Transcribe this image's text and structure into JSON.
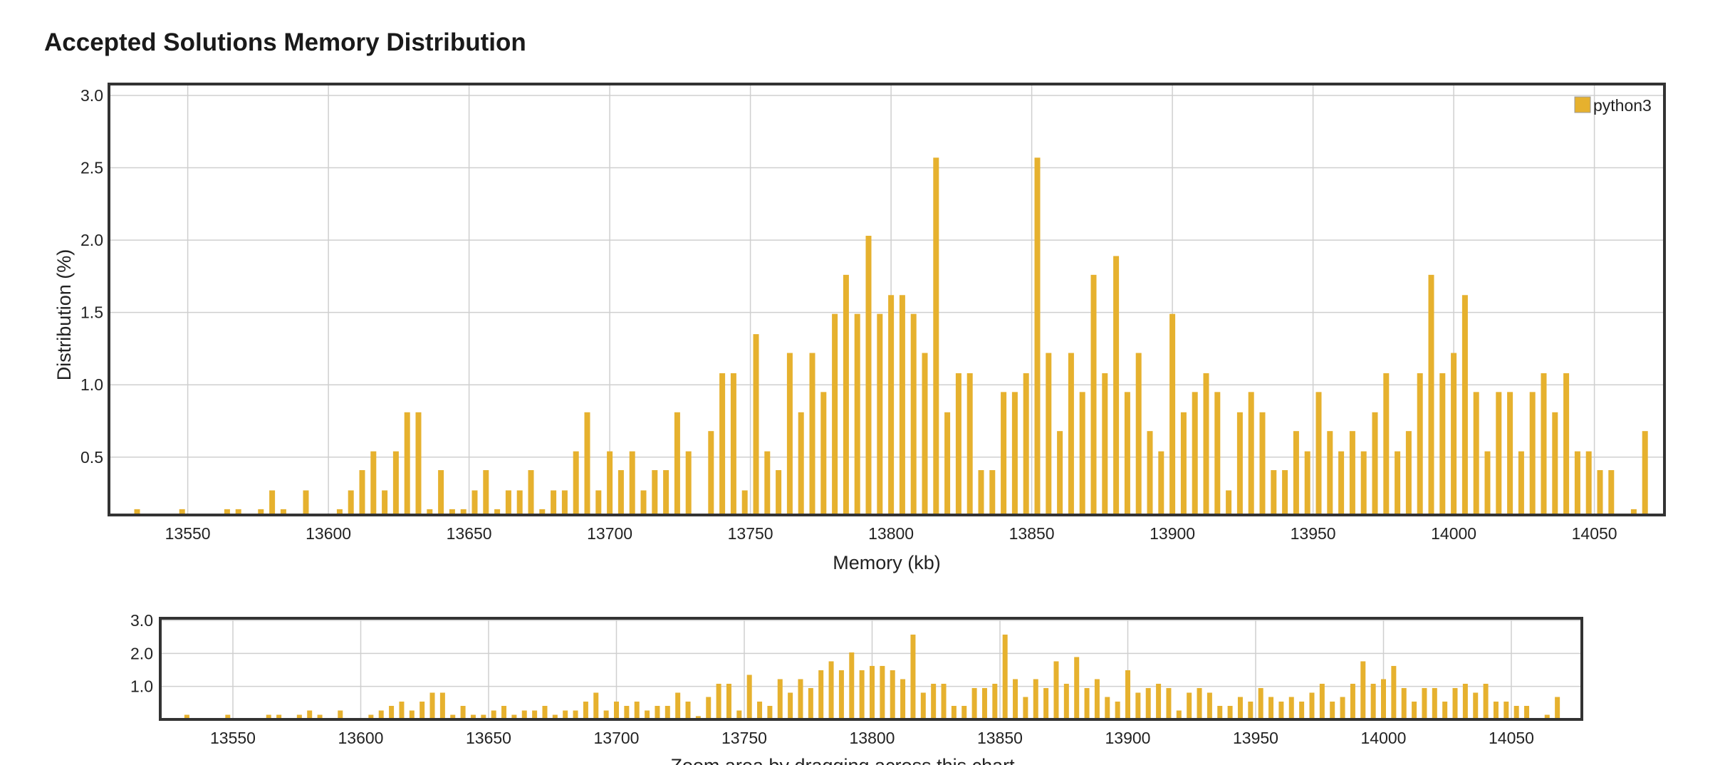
{
  "page": {
    "title": "Accepted Solutions Memory Distribution"
  },
  "colors": {
    "bar": "#e6b12e",
    "frame": "#333333",
    "grid": "#cfcfcf",
    "text": "#222222"
  },
  "chart_data": [
    {
      "id": "main",
      "type": "bar",
      "title": "Accepted Solutions Memory Distribution",
      "xlabel": "Memory (kb)",
      "ylabel": "Distribution (%)",
      "xlim": [
        13521,
        13078.9
      ],
      "ylim": [
        0.1,
        3.05
      ],
      "xticks": [
        13550,
        13600,
        13650,
        13700,
        13750,
        13800,
        13850,
        13900,
        13950,
        14000,
        14050
      ],
      "yticks": [
        0.5,
        1.0,
        1.5,
        2.0,
        2.5,
        3.0
      ],
      "ytick_labels": [
        "0.5",
        "1.0",
        "1.5",
        "2.0",
        "2.5",
        "3.0"
      ],
      "grid": true,
      "legend": {
        "position": "top-right",
        "entries": [
          "python3"
        ]
      },
      "series": [
        {
          "name": "python3",
          "x": [
            13532,
            13548,
            13564,
            13568,
            13576,
            13580,
            13584,
            13592,
            13604,
            13608,
            13612,
            13616,
            13620,
            13624,
            13628,
            13632,
            13636,
            13640,
            13644,
            13648,
            13652,
            13656,
            13660,
            13664,
            13668,
            13672,
            13676,
            13680,
            13684,
            13688,
            13692,
            13696,
            13700,
            13704,
            13708,
            13712,
            13716,
            13720,
            13724,
            13728,
            13732,
            13736,
            13740,
            13744,
            13748,
            13752,
            13756,
            13760,
            13764,
            13768,
            13772,
            13776,
            13780,
            13784,
            13788,
            13792,
            13796,
            13800,
            13804,
            13808,
            13812,
            13816,
            13820,
            13824,
            13828,
            13832,
            13836,
            13840,
            13844,
            13848,
            13852,
            13856,
            13860,
            13864,
            13868,
            13872,
            13876,
            13880,
            13884,
            13888,
            13892,
            13896,
            13900,
            13904,
            13908,
            13912,
            13916,
            13920,
            13924,
            13928,
            13932,
            13936,
            13940,
            13944,
            13948,
            13952,
            13956,
            13960,
            13964,
            13968,
            13972,
            13976,
            13980,
            13984,
            13988,
            13992,
            13996,
            14000,
            14004,
            14008,
            14012,
            14016,
            14020,
            14024,
            14028,
            14032,
            14036,
            14040,
            14044,
            14048,
            14052,
            14056,
            14064,
            14068
          ],
          "values": [
            0.14,
            0.14,
            0.14,
            0.14,
            0.14,
            0.27,
            0.14,
            0.27,
            0.14,
            0.27,
            0.41,
            0.54,
            0.27,
            0.54,
            0.81,
            0.81,
            0.14,
            0.41,
            0.14,
            0.14,
            0.27,
            0.41,
            0.14,
            0.27,
            0.27,
            0.41,
            0.14,
            0.27,
            0.27,
            0.54,
            0.81,
            0.27,
            0.54,
            0.41,
            0.54,
            0.27,
            0.41,
            0.41,
            0.81,
            0.54,
            0.1,
            0.68,
            1.08,
            1.08,
            0.27,
            1.35,
            0.54,
            0.41,
            1.22,
            0.81,
            1.22,
            0.95,
            1.49,
            1.76,
            1.49,
            2.03,
            1.49,
            1.62,
            1.62,
            1.49,
            1.22,
            2.57,
            0.81,
            1.08,
            1.08,
            0.41,
            0.41,
            0.95,
            0.95,
            1.08,
            2.57,
            1.22,
            0.68,
            1.22,
            0.95,
            1.76,
            1.08,
            1.89,
            0.95,
            1.22,
            0.68,
            0.54,
            1.49,
            0.81,
            0.95,
            1.08,
            0.95,
            0.27,
            0.81,
            0.95,
            0.81,
            0.41,
            0.41,
            0.68,
            0.54,
            0.95,
            0.68,
            0.54,
            0.68,
            0.54,
            0.81,
            1.08,
            0.54,
            0.68,
            1.08,
            1.76,
            1.08,
            1.22,
            1.62,
            0.95,
            0.54,
            0.95,
            0.95,
            0.54,
            0.95,
            1.08,
            0.81,
            1.08,
            0.54,
            0.54,
            0.41,
            0.41,
            0.14,
            0.68
          ]
        }
      ]
    },
    {
      "id": "navigator",
      "type": "bar",
      "caption": "Zoom area by dragging across this chart",
      "ylim": [
        0.0,
        3.05
      ],
      "xticks": [
        13550,
        13600,
        13650,
        13700,
        13750,
        13800,
        13850,
        13900,
        13950,
        14000,
        14050
      ],
      "yticks": [
        1.0,
        2.0,
        3.0
      ],
      "ytick_labels": [
        "1.0",
        "2.0",
        "3.0"
      ],
      "grid": true
    }
  ]
}
